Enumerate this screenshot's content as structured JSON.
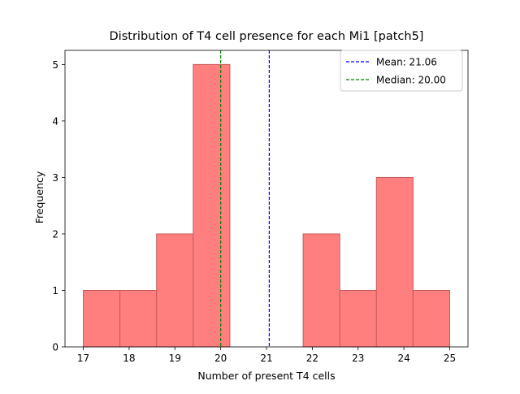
{
  "chart_data": {
    "type": "bar",
    "title": "Distribution of T4 cell presence for each Mi1 [patch5]",
    "xlabel": "Number of present T4 cells",
    "ylabel": "Frequency",
    "xlim": [
      16.6,
      25.4
    ],
    "ylim": [
      0,
      5.25
    ],
    "xticks": [
      17,
      18,
      19,
      20,
      21,
      22,
      23,
      24,
      25
    ],
    "yticks": [
      0,
      1,
      2,
      3,
      4,
      5
    ],
    "bins": [
      {
        "x0": 17.0,
        "x1": 17.8,
        "count": 1
      },
      {
        "x0": 17.8,
        "x1": 18.6,
        "count": 1
      },
      {
        "x0": 18.6,
        "x1": 19.4,
        "count": 2
      },
      {
        "x0": 19.4,
        "x1": 20.2,
        "count": 5
      },
      {
        "x0": 20.2,
        "x1": 21.0,
        "count": 0
      },
      {
        "x0": 21.0,
        "x1": 21.8,
        "count": 0
      },
      {
        "x0": 21.8,
        "x1": 22.6,
        "count": 2
      },
      {
        "x0": 22.6,
        "x1": 23.4,
        "count": 1
      },
      {
        "x0": 23.4,
        "x1": 24.2,
        "count": 3
      },
      {
        "x0": 24.2,
        "x1": 25.0,
        "count": 1
      }
    ],
    "bar_color": "#ff7f7f",
    "bar_edge_color": "#c85a5a",
    "reference_lines": [
      {
        "label": "Mean: 21.06",
        "value": 21.06,
        "color": "#0000ff",
        "style": "dashed"
      },
      {
        "label": "Median: 20.00",
        "value": 20.0,
        "color": "#008000",
        "style": "dashed"
      }
    ],
    "legend_position": "top-right",
    "grid": false
  }
}
